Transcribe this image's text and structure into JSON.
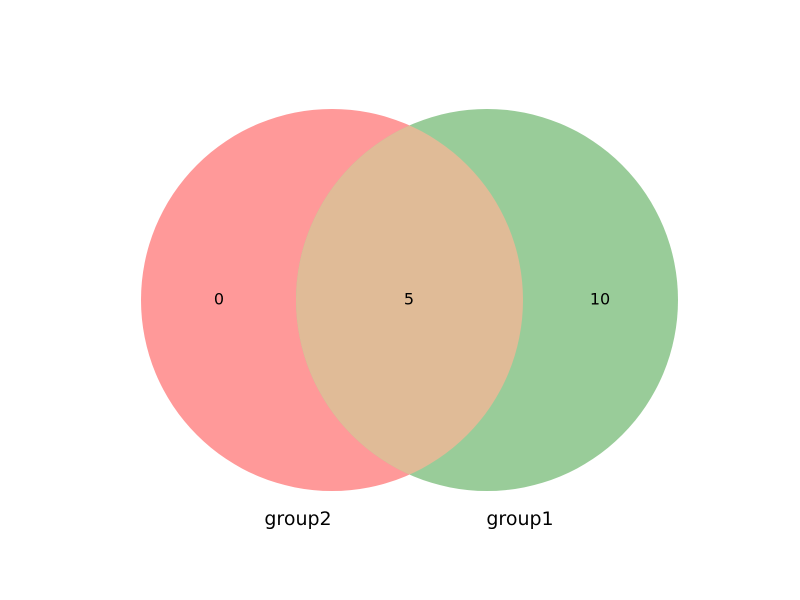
{
  "venn": {
    "sets": [
      {
        "name": "group2",
        "color": "#ff9999"
      },
      {
        "name": "group1",
        "color": "#99cc99"
      }
    ],
    "overlap_color": "#e0bb97",
    "regions": {
      "group2_only": "0",
      "both": "5",
      "group1_only": "10"
    }
  }
}
